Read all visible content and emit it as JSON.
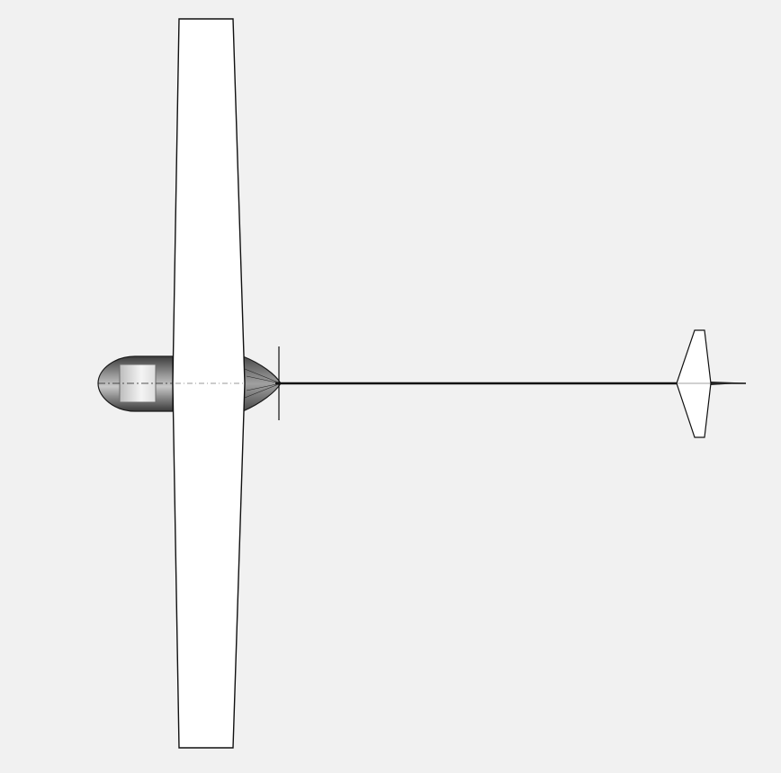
{
  "colors": {
    "background": "#f1f1f1",
    "surface": "#ffffff",
    "outline": "#000000",
    "canopy": "#d8d8d8",
    "fuselage_shade": "#8a8a8a"
  },
  "view": {
    "projection": "top",
    "subject": "glider"
  }
}
